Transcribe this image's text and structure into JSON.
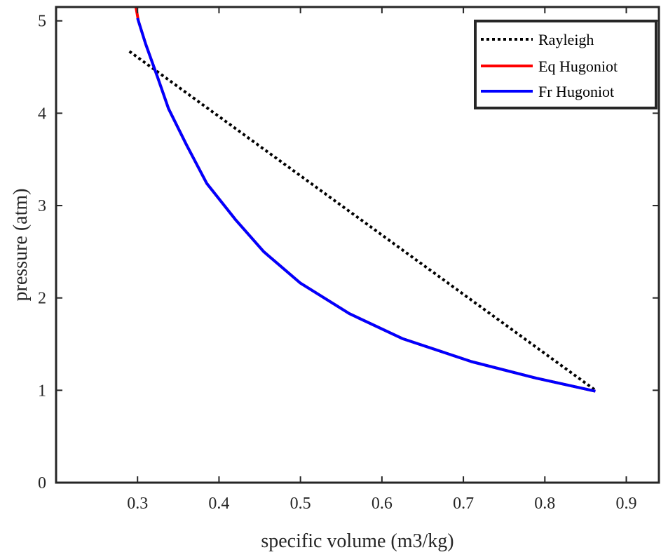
{
  "chart_data": {
    "type": "line",
    "title": "",
    "xlabel": "specific volume (m3/kg)",
    "ylabel": "pressure (atm)",
    "xlim": [
      0.2,
      0.94
    ],
    "ylim": [
      0,
      5.15
    ],
    "xticks": [
      "0.3",
      "0.4",
      "0.5",
      "0.6",
      "0.7",
      "0.8",
      "0.9"
    ],
    "yticks": [
      "0",
      "1",
      "2",
      "3",
      "4",
      "5"
    ],
    "grid": false,
    "legend_position": "top-right",
    "series": [
      {
        "name": "Rayleigh",
        "color": "#000000",
        "style": "dotted",
        "x": [
          0.29,
          0.862
        ],
        "y": [
          4.67,
          1.0
        ]
      },
      {
        "name": "Eq Hugoniot",
        "color": "#ff0000",
        "style": "solid",
        "x": [
          0.298,
          0.301,
          0.31,
          0.325,
          0.338,
          0.36,
          0.385,
          0.42,
          0.455,
          0.5,
          0.56,
          0.625,
          0.71,
          0.79,
          0.862
        ],
        "y": [
          5.15,
          5.0,
          4.75,
          4.38,
          4.05,
          3.66,
          3.24,
          2.85,
          2.5,
          2.16,
          1.83,
          1.56,
          1.31,
          1.13,
          0.99
        ]
      },
      {
        "name": "Fr Hugoniot",
        "color": "#0000ff",
        "style": "solid",
        "x": [
          0.3,
          0.31,
          0.325,
          0.338,
          0.36,
          0.385,
          0.42,
          0.455,
          0.5,
          0.56,
          0.625,
          0.71,
          0.79,
          0.862
        ],
        "y": [
          5.03,
          4.75,
          4.38,
          4.05,
          3.66,
          3.24,
          2.85,
          2.5,
          2.16,
          1.83,
          1.56,
          1.31,
          1.13,
          0.99
        ]
      }
    ]
  }
}
